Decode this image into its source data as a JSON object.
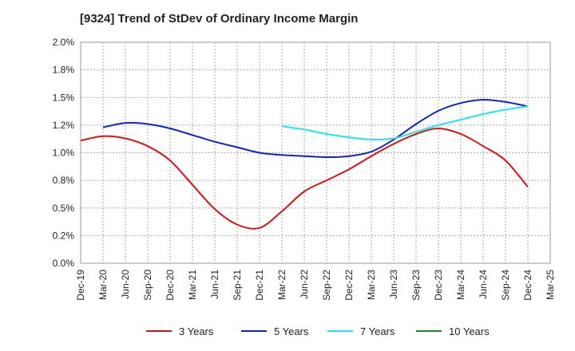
{
  "chart_data": {
    "type": "line",
    "title": "[9324]  Trend of StDev of Ordinary Income Margin",
    "xlabel": "",
    "ylabel": "",
    "ylim": [
      0,
      0.02
    ],
    "y_ticks": [
      "0.0%",
      "0.2%",
      "0.5%",
      "0.8%",
      "1.0%",
      "1.2%",
      "1.5%",
      "1.8%",
      "2.0%"
    ],
    "x_ticks": [
      "Dec-19",
      "Mar-20",
      "Jun-20",
      "Sep-20",
      "Dec-20",
      "Mar-21",
      "Jun-21",
      "Sep-21",
      "Dec-21",
      "Mar-22",
      "Jun-22",
      "Sep-22",
      "Dec-22",
      "Mar-23",
      "Jun-23",
      "Sep-23",
      "Dec-23",
      "Mar-24",
      "Jun-24",
      "Sep-24",
      "Dec-24",
      "Mar-25"
    ],
    "grid": true,
    "legend_position": "bottom",
    "series": [
      {
        "name": "3 Years",
        "color": "#dd1111",
        "x": [
          "Dec-19",
          "Mar-20",
          "Jun-20",
          "Sep-20",
          "Dec-20",
          "Mar-21",
          "Jun-21",
          "Sep-21",
          "Dec-21",
          "Mar-22",
          "Jun-22",
          "Sep-22",
          "Dec-22",
          "Mar-23",
          "Jun-23",
          "Sep-23",
          "Dec-23",
          "Mar-24",
          "Jun-24",
          "Sep-24",
          "Dec-24"
        ],
        "values": [
          0.0111,
          0.0115,
          0.0113,
          0.0106,
          0.0093,
          0.0071,
          0.0049,
          0.0035,
          0.0032,
          0.0047,
          0.0065,
          0.0075,
          0.0085,
          0.0097,
          0.0108,
          0.0117,
          0.0122,
          0.0117,
          0.0106,
          0.0093,
          0.0069
        ]
      },
      {
        "name": "5 Years",
        "color": "#1122cc",
        "x": [
          "Mar-20",
          "Jun-20",
          "Sep-20",
          "Dec-20",
          "Mar-21",
          "Jun-21",
          "Sep-21",
          "Dec-21",
          "Mar-22",
          "Jun-22",
          "Sep-22",
          "Dec-22",
          "Mar-23",
          "Jun-23",
          "Sep-23",
          "Dec-23",
          "Mar-24",
          "Jun-24",
          "Sep-24",
          "Dec-24"
        ],
        "values": [
          0.0123,
          0.0127,
          0.0126,
          0.0122,
          0.0116,
          0.011,
          0.0105,
          0.01,
          0.0098,
          0.0097,
          0.0096,
          0.0097,
          0.0101,
          0.0112,
          0.0126,
          0.0138,
          0.0145,
          0.0148,
          0.0146,
          0.0142
        ]
      },
      {
        "name": "7 Years",
        "color": "#22e5ee",
        "x": [
          "Mar-22",
          "Jun-22",
          "Sep-22",
          "Dec-22",
          "Mar-23",
          "Jun-23",
          "Sep-23",
          "Dec-23",
          "Mar-24",
          "Jun-24",
          "Sep-24",
          "Dec-24"
        ],
        "values": [
          0.0124,
          0.0121,
          0.0117,
          0.0114,
          0.0112,
          0.0113,
          0.0119,
          0.0125,
          0.013,
          0.0135,
          0.0139,
          0.0142
        ]
      },
      {
        "name": "10 Years",
        "color": "#228822",
        "x": [],
        "values": []
      }
    ]
  }
}
